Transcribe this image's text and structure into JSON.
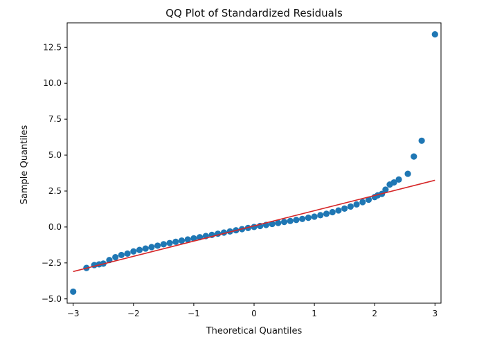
{
  "chart_data": {
    "type": "scatter",
    "title": "QQ Plot of Standardized Residuals",
    "xlabel": "Theoretical Quantiles",
    "ylabel": "Sample Quantiles",
    "xlim": [
      -3.1,
      3.1
    ],
    "ylim": [
      -5.3,
      14.2
    ],
    "xticks": [
      -3,
      -2,
      -1,
      0,
      1,
      2,
      3
    ],
    "xtick_labels": [
      "−3",
      "−2",
      "−1",
      "0",
      "1",
      "2",
      "3"
    ],
    "yticks": [
      -5.0,
      -2.5,
      0.0,
      2.5,
      5.0,
      7.5,
      10.0,
      12.5
    ],
    "ytick_labels": [
      "−5.0",
      "−2.5",
      "0.0",
      "2.5",
      "5.0",
      "7.5",
      "10.0",
      "12.5"
    ],
    "grid": false,
    "marker_color": "#1f77b4",
    "reference_line": {
      "color": "#d62728",
      "x": [
        -3.0,
        3.0
      ],
      "y": [
        -3.1,
        3.25
      ]
    },
    "points": {
      "x": [
        -3.0,
        -2.78,
        -2.65,
        -2.57,
        -2.5,
        -2.4,
        -2.3,
        -2.2,
        -2.1,
        -2.0,
        -1.9,
        -1.8,
        -1.7,
        -1.6,
        -1.5,
        -1.4,
        -1.3,
        -1.2,
        -1.1,
        -1.0,
        -0.9,
        -0.8,
        -0.7,
        -0.6,
        -0.5,
        -0.4,
        -0.3,
        -0.2,
        -0.1,
        0.0,
        0.1,
        0.2,
        0.3,
        0.4,
        0.5,
        0.6,
        0.7,
        0.8,
        0.9,
        1.0,
        1.1,
        1.2,
        1.3,
        1.4,
        1.5,
        1.6,
        1.7,
        1.8,
        1.9,
        2.0,
        2.05,
        2.12,
        2.18,
        2.25,
        2.32,
        2.4,
        2.55,
        2.65,
        2.78,
        3.0
      ],
      "y": [
        -4.5,
        -2.85,
        -2.65,
        -2.6,
        -2.55,
        -2.3,
        -2.1,
        -1.95,
        -1.85,
        -1.7,
        -1.6,
        -1.5,
        -1.4,
        -1.3,
        -1.2,
        -1.12,
        -1.03,
        -0.95,
        -0.87,
        -0.79,
        -0.71,
        -0.63,
        -0.55,
        -0.47,
        -0.39,
        -0.31,
        -0.23,
        -0.15,
        -0.07,
        0.0,
        0.07,
        0.14,
        0.21,
        0.28,
        0.35,
        0.42,
        0.49,
        0.56,
        0.64,
        0.72,
        0.82,
        0.92,
        1.03,
        1.15,
        1.28,
        1.42,
        1.57,
        1.73,
        1.9,
        2.08,
        2.2,
        2.3,
        2.6,
        2.95,
        3.1,
        3.3,
        3.7,
        4.9,
        6.0,
        13.4
      ]
    }
  }
}
